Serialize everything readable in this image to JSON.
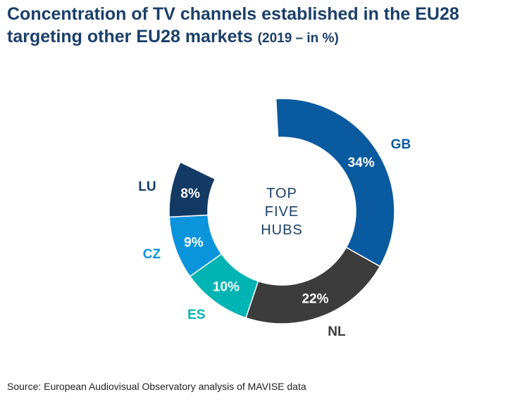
{
  "title": {
    "main": "Concentration of TV channels established in the EU28 targeting other EU28 markets",
    "sub": "(2019 – in %)"
  },
  "center_label": [
    "TOP",
    "FIVE",
    "HUBS"
  ],
  "source": "Source: European Audiovisual Observatory analysis of MAVISE data",
  "chart_data": {
    "type": "pie",
    "variant": "donut",
    "title": "Concentration of TV channels established in the EU28 targeting other EU28 markets (2019 – in %)",
    "categories": [
      "GB",
      "NL",
      "ES",
      "CZ",
      "LU"
    ],
    "values": [
      34,
      22,
      10,
      9,
      8
    ],
    "data_labels": [
      "34%",
      "22%",
      "10%",
      "9%",
      "8%"
    ],
    "colors": [
      "#0a5aa0",
      "#3c3c3c",
      "#00b4b4",
      "#0a94dc",
      "#123a64"
    ],
    "label_colors": [
      "#0a5aa0",
      "#3c3c3c",
      "#00b4b4",
      "#0a94dc",
      "#123a64"
    ],
    "unit": "%"
  }
}
